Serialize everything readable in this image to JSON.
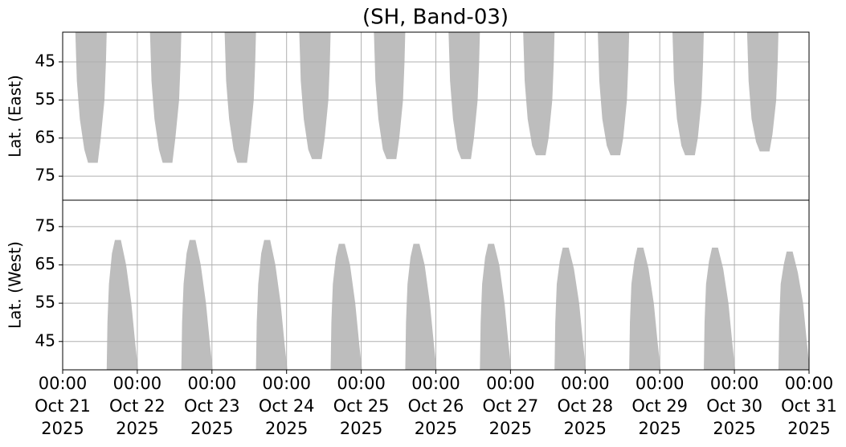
{
  "chart_data": [
    {
      "type": "area",
      "title": "(SH, Band-03)",
      "ylabel": "Lat. (East)",
      "color": "#bdbdbd",
      "grid": true,
      "inverted": true,
      "xlim": [
        0,
        10
      ],
      "ylim": [
        37.2,
        81.3
      ],
      "yticks": [
        45,
        55,
        65,
        75
      ],
      "series": [
        {
          "x": [
            0.17,
            0.19,
            0.23,
            0.29,
            0.34,
            0.47,
            0.51,
            0.56,
            0.58,
            0.59
          ],
          "values": [
            37.2,
            50,
            60,
            68,
            71.5,
            71.5,
            65,
            55,
            45,
            37.2
          ]
        },
        {
          "x": [
            1.17,
            1.19,
            1.23,
            1.29,
            1.34,
            1.47,
            1.51,
            1.56,
            1.58,
            1.59
          ],
          "values": [
            37.2,
            50,
            60,
            68,
            71.5,
            71.5,
            65,
            55,
            45,
            37.2
          ]
        },
        {
          "x": [
            2.17,
            2.19,
            2.23,
            2.29,
            2.34,
            2.47,
            2.51,
            2.56,
            2.58,
            2.59
          ],
          "values": [
            37.2,
            50,
            60,
            68,
            71.5,
            71.5,
            65,
            55,
            45,
            37.2
          ]
        },
        {
          "x": [
            3.17,
            3.19,
            3.23,
            3.29,
            3.34,
            3.47,
            3.51,
            3.56,
            3.58,
            3.59
          ],
          "values": [
            37.2,
            50,
            60,
            68,
            70.5,
            70.5,
            65,
            55,
            45,
            37.2
          ]
        },
        {
          "x": [
            4.17,
            4.19,
            4.23,
            4.29,
            4.34,
            4.47,
            4.51,
            4.56,
            4.58,
            4.59
          ],
          "values": [
            37.2,
            50,
            60,
            68,
            70.5,
            70.5,
            65,
            55,
            45,
            37.2
          ]
        },
        {
          "x": [
            5.17,
            5.19,
            5.23,
            5.29,
            5.34,
            5.47,
            5.51,
            5.56,
            5.58,
            5.59
          ],
          "values": [
            37.2,
            50,
            60,
            68,
            70.5,
            70.5,
            65,
            55,
            45,
            37.2
          ]
        },
        {
          "x": [
            6.17,
            6.19,
            6.23,
            6.29,
            6.34,
            6.47,
            6.51,
            6.56,
            6.58,
            6.59
          ],
          "values": [
            37.2,
            50,
            60,
            67,
            69.5,
            69.5,
            65,
            55,
            45,
            37.2
          ]
        },
        {
          "x": [
            7.17,
            7.19,
            7.23,
            7.29,
            7.34,
            7.47,
            7.51,
            7.56,
            7.58,
            7.59
          ],
          "values": [
            37.2,
            50,
            60,
            67,
            69.5,
            69.5,
            65,
            55,
            45,
            37.2
          ]
        },
        {
          "x": [
            8.17,
            8.19,
            8.23,
            8.29,
            8.34,
            8.47,
            8.51,
            8.56,
            8.58,
            8.59
          ],
          "values": [
            37.2,
            50,
            60,
            67,
            69.5,
            69.5,
            65,
            55,
            45,
            37.2
          ]
        },
        {
          "x": [
            9.17,
            9.19,
            9.23,
            9.29,
            9.34,
            9.47,
            9.51,
            9.56,
            9.58,
            9.59
          ],
          "values": [
            37.2,
            50,
            60,
            66,
            68.5,
            68.5,
            64,
            55,
            45,
            37.2
          ]
        }
      ]
    },
    {
      "type": "area",
      "ylabel": "Lat. (West)",
      "color": "#bdbdbd",
      "grid": true,
      "inverted": false,
      "xlim": [
        0,
        10
      ],
      "ylim": [
        37.6,
        81.9
      ],
      "yticks": [
        45,
        55,
        65,
        75
      ],
      "xticks": [
        {
          "value": 0,
          "label": "00:00\nOct 21\n2025"
        },
        {
          "value": 1,
          "label": "00:00\nOct 22\n2025"
        },
        {
          "value": 2,
          "label": "00:00\nOct 23\n2025"
        },
        {
          "value": 3,
          "label": "00:00\nOct 24\n2025"
        },
        {
          "value": 4,
          "label": "00:00\nOct 25\n2025"
        },
        {
          "value": 5,
          "label": "00:00\nOct 26\n2025"
        },
        {
          "value": 6,
          "label": "00:00\nOct 27\n2025"
        },
        {
          "value": 7,
          "label": "00:00\nOct 28\n2025"
        },
        {
          "value": 8,
          "label": "00:00\nOct 29\n2025"
        },
        {
          "value": 9,
          "label": "00:00\nOct 30\n2025"
        },
        {
          "value": 10,
          "label": "00:00\nOct 31\n2025"
        }
      ],
      "series": [
        {
          "x": [
            0.59,
            0.6,
            0.62,
            0.66,
            0.7,
            0.78,
            0.85,
            0.92,
            0.97,
            1.01
          ],
          "values": [
            37.6,
            50,
            60,
            68,
            71.5,
            71.5,
            65,
            55,
            45,
            37.6
          ]
        },
        {
          "x": [
            1.59,
            1.6,
            1.62,
            1.66,
            1.7,
            1.78,
            1.85,
            1.92,
            1.97,
            2.01
          ],
          "values": [
            37.6,
            50,
            60,
            68,
            71.5,
            71.5,
            65,
            55,
            45,
            37.6
          ]
        },
        {
          "x": [
            2.59,
            2.6,
            2.62,
            2.66,
            2.7,
            2.78,
            2.85,
            2.92,
            2.97,
            3.01
          ],
          "values": [
            37.6,
            50,
            60,
            68,
            71.5,
            71.5,
            65,
            55,
            45,
            37.6
          ]
        },
        {
          "x": [
            3.59,
            3.6,
            3.62,
            3.66,
            3.7,
            3.78,
            3.85,
            3.92,
            3.97,
            4.01
          ],
          "values": [
            37.6,
            50,
            60,
            67,
            70.5,
            70.5,
            65,
            55,
            45,
            37.6
          ]
        },
        {
          "x": [
            4.59,
            4.6,
            4.62,
            4.66,
            4.7,
            4.78,
            4.85,
            4.92,
            4.97,
            5.01
          ],
          "values": [
            37.6,
            50,
            60,
            67,
            70.5,
            70.5,
            65,
            55,
            45,
            37.6
          ]
        },
        {
          "x": [
            5.59,
            5.6,
            5.62,
            5.66,
            5.7,
            5.78,
            5.85,
            5.92,
            5.97,
            6.01
          ],
          "values": [
            37.6,
            50,
            60,
            67,
            70.5,
            70.5,
            65,
            55,
            45,
            37.6
          ]
        },
        {
          "x": [
            6.59,
            6.6,
            6.62,
            6.66,
            6.7,
            6.78,
            6.85,
            6.92,
            6.97,
            7.01
          ],
          "values": [
            37.6,
            50,
            60,
            66,
            69.5,
            69.5,
            64,
            55,
            45,
            37.6
          ]
        },
        {
          "x": [
            7.59,
            7.6,
            7.62,
            7.66,
            7.7,
            7.78,
            7.85,
            7.92,
            7.97,
            8.01
          ],
          "values": [
            37.6,
            50,
            60,
            66,
            69.5,
            69.5,
            64,
            55,
            45,
            37.6
          ]
        },
        {
          "x": [
            8.59,
            8.6,
            8.62,
            8.66,
            8.7,
            8.78,
            8.85,
            8.92,
            8.97,
            9.01
          ],
          "values": [
            37.6,
            50,
            60,
            66,
            69.5,
            69.5,
            64,
            55,
            45,
            37.6
          ]
        },
        {
          "x": [
            9.59,
            9.6,
            9.62,
            9.66,
            9.7,
            9.78,
            9.85,
            9.92,
            9.97,
            10.01
          ],
          "values": [
            37.6,
            50,
            60,
            65,
            68.5,
            68.5,
            63,
            55,
            45,
            37.6
          ]
        }
      ]
    }
  ]
}
